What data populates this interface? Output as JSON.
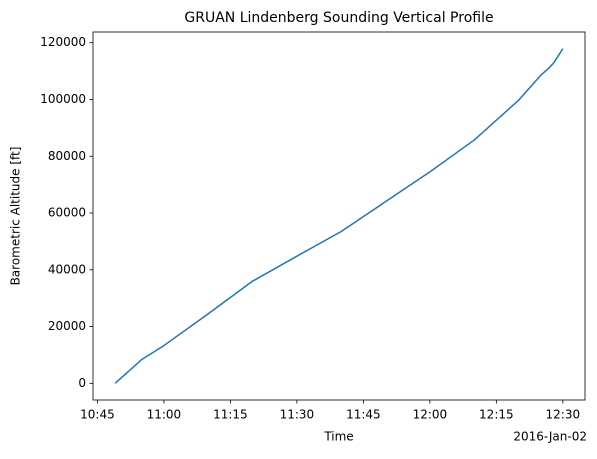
{
  "chart_data": {
    "type": "line",
    "title": "GRUAN Lindenberg Sounding Vertical Profile",
    "x_label": "Time",
    "y_label": "Barometric Altitude [ft]",
    "x_offset_label": "2016-Jan-02",
    "x": [
      "10:49",
      "10:55",
      "11:00",
      "11:10",
      "11:20",
      "11:30",
      "11:40",
      "11:50",
      "12:00",
      "12:10",
      "12:15",
      "12:20",
      "12:25",
      "12:27",
      "12:28",
      "12:30"
    ],
    "series": [
      {
        "name": "Barometric Altitude",
        "color": "#1f77b4",
        "values": [
          0,
          8400,
          13300,
          24500,
          36000,
          44800,
          53500,
          64000,
          74500,
          85700,
          92700,
          99700,
          108500,
          111300,
          113000,
          117900
        ]
      }
    ],
    "xlim": [
      "10:44",
      "12:35"
    ],
    "xticks": [
      "10:45",
      "11:00",
      "11:15",
      "11:30",
      "11:45",
      "12:00",
      "12:15",
      "12:30"
    ],
    "ylim": [
      -5875,
      123775
    ],
    "yticks": [
      0,
      20000,
      40000,
      60000,
      80000,
      100000,
      120000
    ],
    "grid": false
  }
}
